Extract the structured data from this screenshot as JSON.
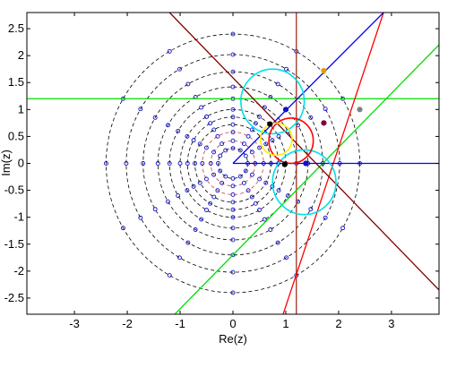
{
  "chart_data": {
    "type": "scatter",
    "title": "",
    "xlabel": "Re(z)",
    "ylabel": "Im(z)",
    "xlim": [
      -3.9,
      3.9
    ],
    "ylim": [
      -2.8,
      2.8
    ],
    "xticks": [
      -3,
      -2,
      -1,
      0,
      1,
      2,
      3
    ],
    "yticks": [
      -2.5,
      -2,
      -1.5,
      -1,
      -0.5,
      0,
      0.5,
      1,
      1.5,
      2,
      2.5
    ],
    "xtick_labels": [
      "-3",
      "-2",
      "-1",
      "0",
      "1",
      "2",
      "3"
    ],
    "ytick_labels": [
      "-2.5",
      "-2",
      "-1.5",
      "-1",
      "-0.5",
      "0",
      "0.5",
      "1",
      "1.5",
      "2",
      "2.5"
    ],
    "grid": false,
    "colors": {
      "axes": "#000000",
      "ring": "#000000",
      "ring_inner": "#c04040",
      "points": "#1010c8",
      "rays": "#0000ff",
      "green": "#00dd00",
      "red": "#ff0000",
      "dark_red": "#800000",
      "cyan": "#00e0e8",
      "yellow": "#ffee00",
      "vertical": "#a03020"
    },
    "dashed_circles": [
      {
        "r": 0.28,
        "color": "#000000"
      },
      {
        "r": 0.42,
        "color": "#c04040"
      },
      {
        "r": 0.58,
        "color": "#c04040"
      },
      {
        "r": 0.72,
        "color": "#000000"
      },
      {
        "r": 0.86,
        "color": "#000000"
      },
      {
        "r": 1.0,
        "color": "#000000"
      },
      {
        "r": 1.2,
        "color": "#000000"
      },
      {
        "r": 1.42,
        "color": "#000000"
      },
      {
        "r": 1.7,
        "color": "#000000"
      },
      {
        "r": 2.02,
        "color": "#000000"
      },
      {
        "r": 2.4,
        "color": "#000000"
      }
    ],
    "point_radii": [
      0.28,
      0.42,
      0.58,
      0.72,
      0.86,
      1.0,
      1.2,
      1.42,
      1.7,
      2.02,
      2.4
    ],
    "points_per_ring": 12,
    "solid_circles": [
      {
        "cx": 0.75,
        "cy": 1.15,
        "r": 0.6,
        "color": "#00e0e8"
      },
      {
        "cx": 1.35,
        "cy": -0.35,
        "r": 0.6,
        "color": "#00e0e8"
      },
      {
        "cx": 1.1,
        "cy": 0.42,
        "r": 0.42,
        "color": "#ff0000"
      },
      {
        "cx": 0.82,
        "cy": 0.45,
        "r": 0.3,
        "color": "#ffee00"
      }
    ],
    "lines": [
      {
        "name": "horizontal",
        "p1": [
          -3.9,
          1.2
        ],
        "p2": [
          3.9,
          1.2
        ],
        "color": "#00dd00"
      },
      {
        "name": "vertical",
        "p1": [
          1.2,
          -2.8
        ],
        "p2": [
          1.2,
          2.8
        ],
        "color": "#a03020"
      },
      {
        "name": "green-diagonal",
        "p1": [
          -1.1,
          -2.8
        ],
        "p2": [
          3.9,
          2.2
        ],
        "color": "#00dd00"
      },
      {
        "name": "red-steep",
        "p1": [
          2.85,
          2.8
        ],
        "p2": [
          0.95,
          -2.8
        ],
        "color": "#ff0000"
      },
      {
        "name": "dark-red-diagonal",
        "p1": [
          -1.2,
          2.8
        ],
        "p2": [
          3.9,
          -2.35
        ],
        "color": "#800000"
      },
      {
        "name": "blue-ray-upper",
        "p1": [
          0,
          0
        ],
        "p2": [
          2.85,
          2.8
        ],
        "color": "#0000ff"
      },
      {
        "name": "blue-ray-horizontal",
        "p1": [
          0,
          0
        ],
        "p2": [
          3.9,
          0
        ],
        "color": "#0000ff"
      }
    ],
    "special_points": [
      {
        "x": 0.7,
        "y": 0.73,
        "color": "#000000"
      },
      {
        "x": 1.0,
        "y": 1.0,
        "color": "#1010c8"
      },
      {
        "x": 0.98,
        "y": -0.02,
        "color": "#000000"
      },
      {
        "x": 1.38,
        "y": 0.0,
        "color": "#1010c8"
      },
      {
        "x": 1.72,
        "y": 0.75,
        "color": "#800040"
      },
      {
        "x": 1.72,
        "y": 1.72,
        "color": "#e0a000"
      },
      {
        "x": 2.4,
        "y": 1.0,
        "color": "#808080"
      }
    ]
  }
}
